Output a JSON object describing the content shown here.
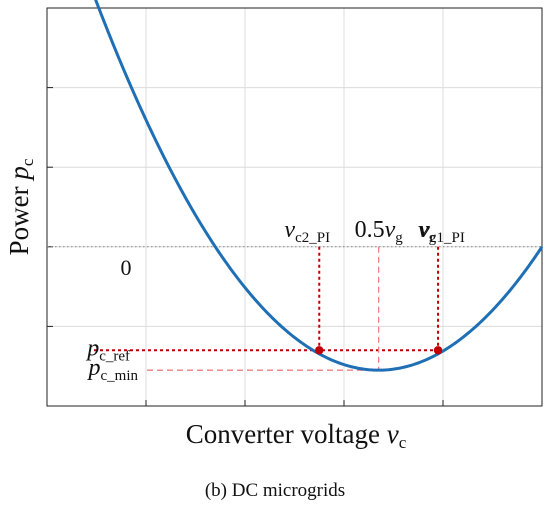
{
  "chart_data": {
    "type": "line",
    "xlabel": {
      "main": "Converter voltage ",
      "var": "v",
      "sub": "c"
    },
    "ylabel": {
      "main": "Power ",
      "var": "p",
      "sub": "c"
    },
    "x_range": [
      0,
      1
    ],
    "y_range": [
      -2.0,
      3.0
    ],
    "grid": true,
    "curve": {
      "description": "parabola p_c vs v_c",
      "x_roots": [
        0.33,
        1.0
      ],
      "vertex": {
        "x": 0.67,
        "y": -1.55
      },
      "color": "#1f6fb5"
    },
    "zero_line": {
      "y": 0,
      "label": "0",
      "color": "#888888"
    },
    "markers": [
      {
        "name": "v_c2_PI",
        "x": 0.55,
        "y": -1.3,
        "label_var": "v",
        "label_sub": "c2_PI"
      },
      {
        "name": "v_c1_PI",
        "x": 0.79,
        "y": -1.3,
        "label_var": "v",
        "label_sub": "c1_PI"
      }
    ],
    "annotations": [
      {
        "name": "half-vg",
        "label_prefix": "0.5",
        "label_var": "v",
        "label_sub": "g",
        "x": 0.67
      },
      {
        "name": "vg",
        "label_var": "v",
        "label_sub": "g",
        "x": 1.0
      },
      {
        "name": "pc-ref",
        "label_var": "p",
        "label_sub": "c_ref",
        "y": -1.3
      },
      {
        "name": "pc-min",
        "label_var": "p",
        "label_sub": "c_min",
        "y": -1.55
      }
    ],
    "colors": {
      "marker": "#c00000",
      "guide_dark": "#c00000",
      "guide_light": "#f08080"
    }
  },
  "caption": "(b) DC microgrids"
}
